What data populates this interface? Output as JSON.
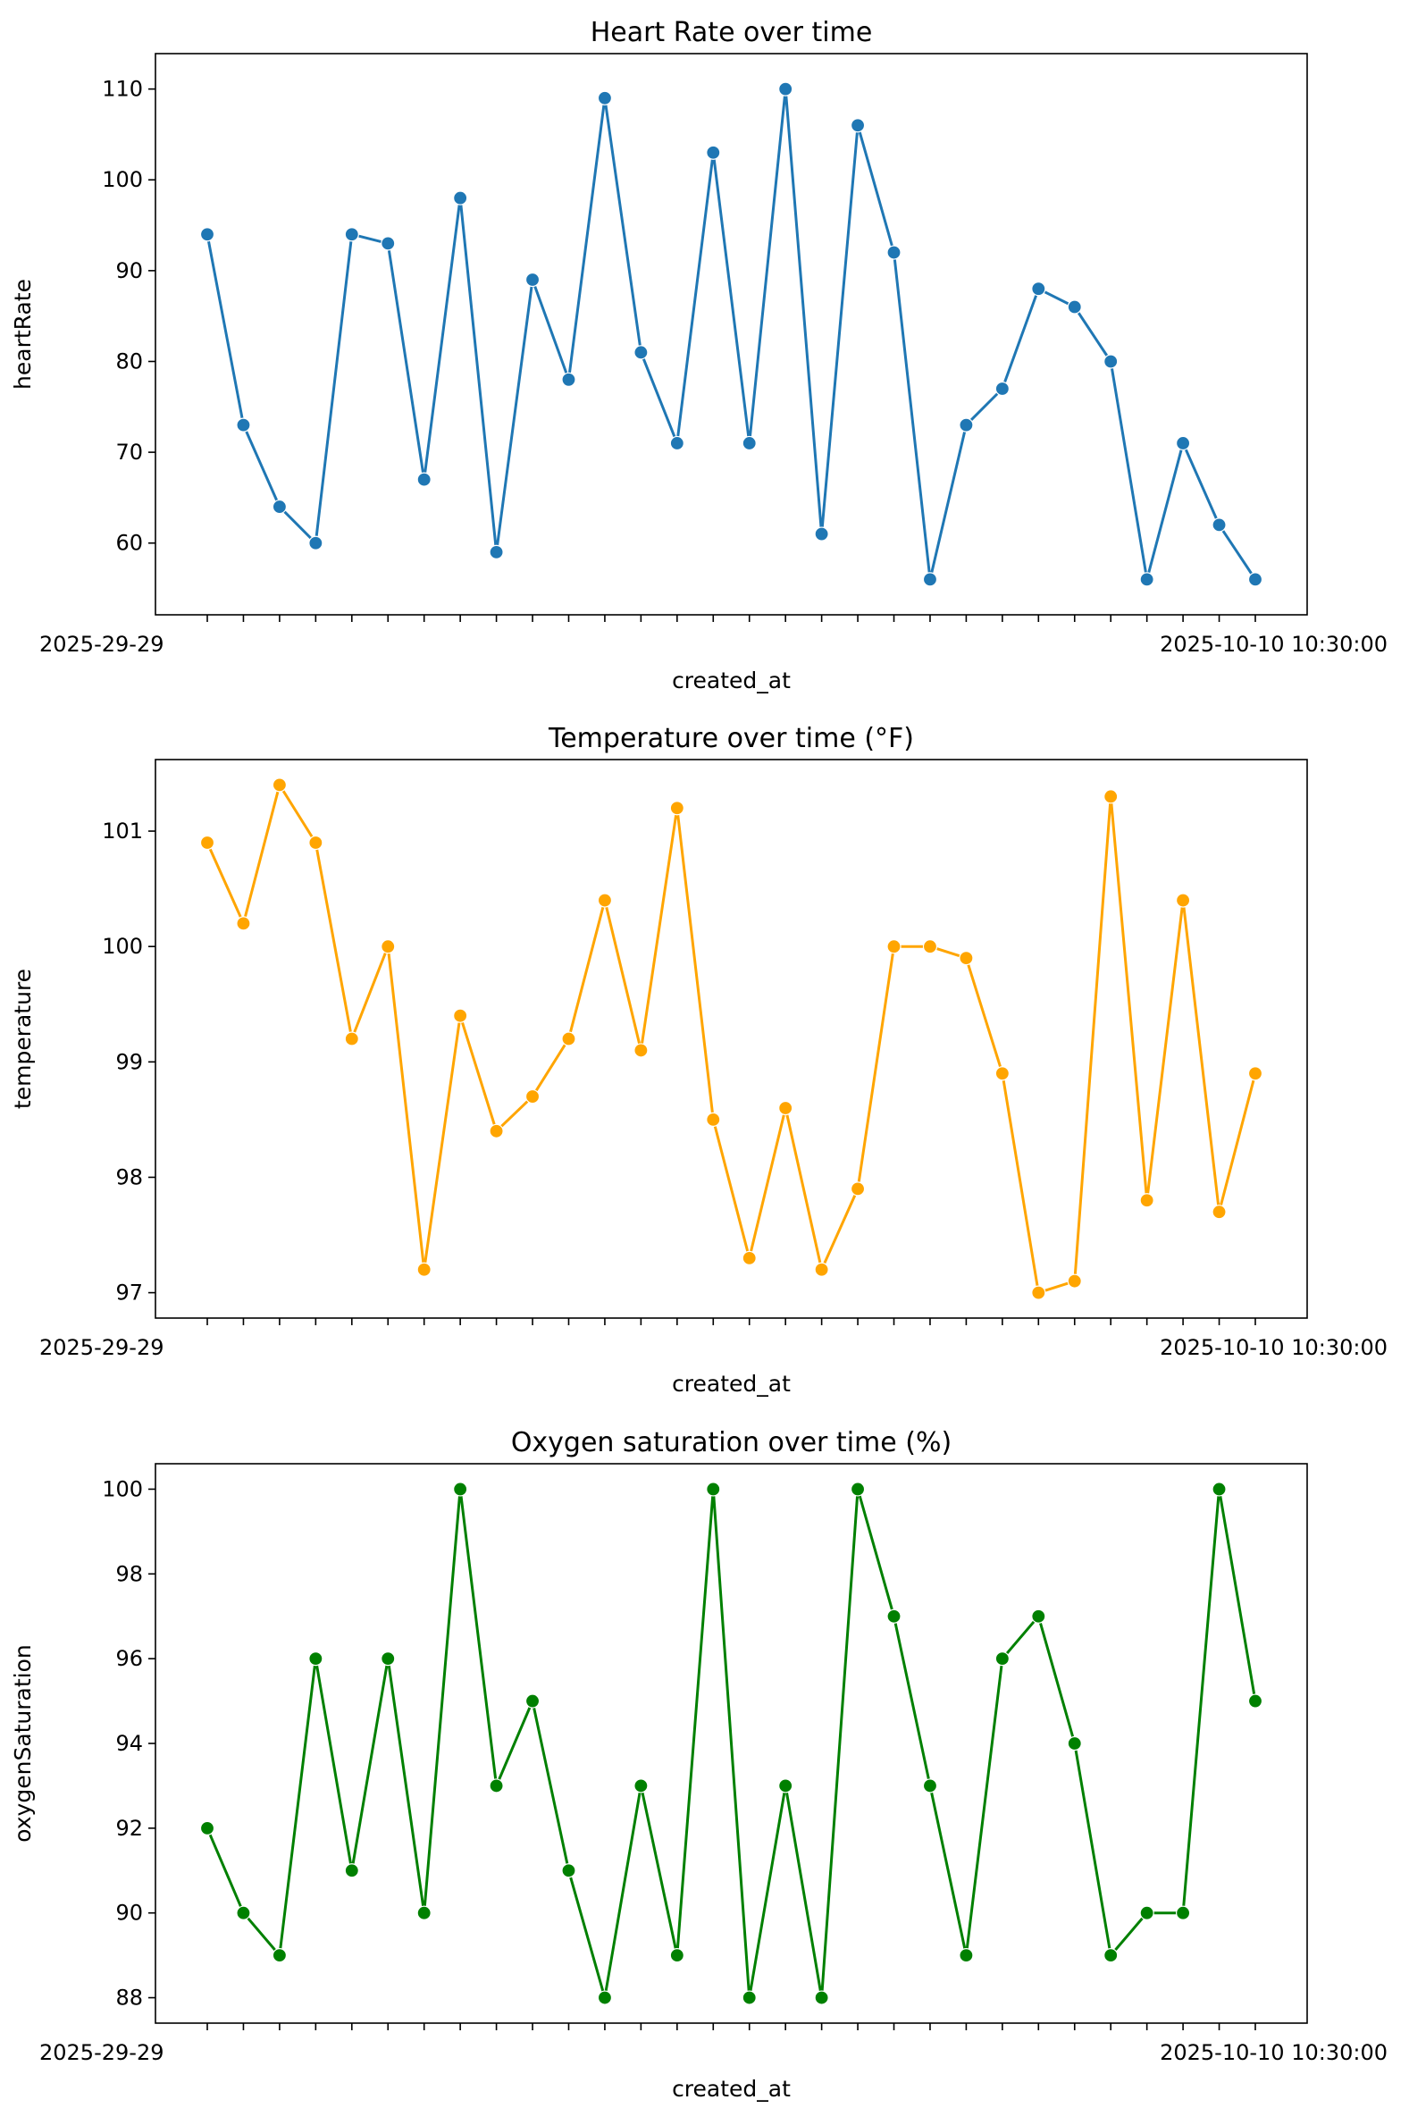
{
  "chart_data": [
    {
      "type": "line",
      "title": "Heart Rate over time",
      "xlabel": "created_at",
      "ylabel": "heartRate",
      "color": "#1f77b4",
      "ylim": [
        52.1,
        113.9
      ],
      "yticks": [
        60,
        70,
        80,
        90,
        100,
        110
      ],
      "x_first_label": "2025-29-29",
      "x_last_label": "2025-10-10 10:30:00",
      "values": [
        94,
        73,
        64,
        60,
        94,
        93,
        67,
        98,
        59,
        89,
        78,
        109,
        81,
        71,
        103,
        71,
        110,
        61,
        106,
        92,
        56,
        73,
        77,
        88,
        86,
        80,
        56,
        71,
        62,
        56
      ]
    },
    {
      "type": "line",
      "title": "Temperature over time (°F)",
      "xlabel": "created_at",
      "ylabel": "temperature",
      "color": "#ffa500",
      "ylim": [
        96.78,
        101.62
      ],
      "yticks": [
        97,
        98,
        99,
        100,
        101
      ],
      "x_first_label": "2025-29-29",
      "x_last_label": "2025-10-10 10:30:00",
      "values": [
        100.9,
        100.2,
        101.4,
        100.9,
        99.2,
        100.0,
        97.2,
        99.4,
        98.4,
        98.7,
        99.2,
        100.4,
        99.1,
        101.2,
        98.5,
        97.3,
        98.6,
        97.2,
        97.9,
        100.0,
        100.0,
        99.9,
        98.9,
        97.0,
        97.1,
        101.3,
        97.8,
        100.4,
        97.7,
        98.9
      ]
    },
    {
      "type": "line",
      "title": "Oxygen saturation over time (%)",
      "xlabel": "created_at",
      "ylabel": "oxygenSaturation",
      "color": "#008000",
      "ylim": [
        87.4,
        100.6
      ],
      "yticks": [
        88,
        90,
        92,
        94,
        96,
        98,
        100
      ],
      "x_first_label": "2025-29-29",
      "x_last_label": "2025-10-10 10:30:00",
      "values": [
        92,
        90,
        89,
        96,
        91,
        96,
        90,
        100,
        93,
        95,
        91,
        88,
        93,
        89,
        100,
        88,
        93,
        88,
        100,
        97,
        93,
        89,
        96,
        97,
        94,
        89,
        90,
        90,
        100,
        95
      ]
    }
  ]
}
